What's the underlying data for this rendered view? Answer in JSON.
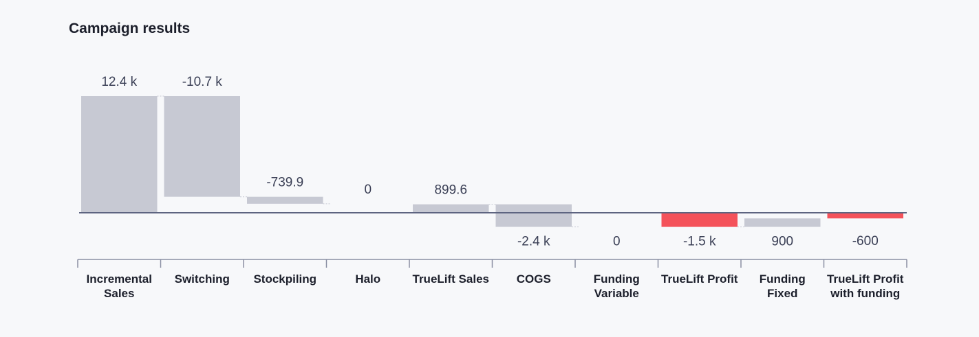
{
  "chart_data": {
    "type": "waterfall",
    "title": "Campaign results",
    "categories": [
      "Incremental Sales",
      "Switching",
      "Stockpiling",
      "Halo",
      "TrueLift Sales",
      "COGS",
      "Funding Variable",
      "TrueLift Profit",
      "Funding Fixed",
      "TrueLift Profit with funding"
    ],
    "values": [
      12400,
      -10700,
      -739.9,
      0,
      899.6,
      -2400,
      0,
      -1500,
      900,
      -600
    ],
    "value_labels": [
      "12.4 k",
      "-10.7 k",
      "-739.9",
      "0",
      "899.6",
      "-2.4 k",
      "0",
      "-1.5 k",
      "900",
      "-600"
    ],
    "measures": [
      "relative",
      "relative",
      "relative",
      "relative",
      "total",
      "relative",
      "relative",
      "total",
      "relative",
      "total"
    ],
    "colors": [
      "#c7c9d3",
      "#c7c9d3",
      "#c7c9d3",
      "#c7c9d3",
      "#c7c9d3",
      "#c7c9d3",
      "#c7c9d3",
      "#f4525a",
      "#c7c9d3",
      "#f4525a"
    ]
  }
}
